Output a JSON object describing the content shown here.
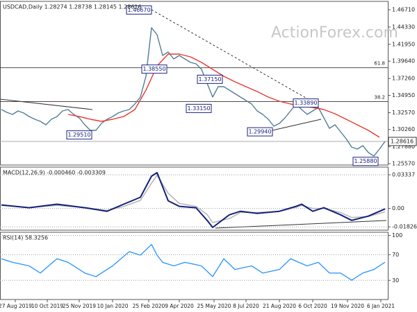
{
  "chart_data": [
    {
      "type": "line",
      "title": "USDCAD,Daily  1.28274 1.28738 1.28145 1.28616",
      "watermark": "ActionForex.com",
      "xlim": [
        -0.25,
        69.25
      ],
      "ylim": [
        1.2538,
        1.4785
      ],
      "yticks": [
        {
          "value": 1.4671,
          "label": "1.46710"
        },
        {
          "value": 1.4433,
          "label": "1.44330"
        },
        {
          "value": 1.4195,
          "label": "1.41950"
        },
        {
          "value": 1.3964,
          "label": "1.39640"
        },
        {
          "value": 1.3726,
          "label": "1.37260"
        },
        {
          "value": 1.3495,
          "label": "1.34950"
        },
        {
          "value": 1.3257,
          "label": "1.32570"
        },
        {
          "value": 1.3026,
          "label": "1.30260"
        },
        {
          "value": 1.2788,
          "label": "1.27880"
        },
        {
          "value": 1.2557,
          "label": "1.25570"
        }
      ],
      "x": [
        0,
        1,
        2,
        3,
        4,
        5,
        6,
        7,
        8,
        9,
        10,
        11,
        12,
        13,
        14,
        15,
        16,
        17,
        18,
        19,
        20,
        21,
        22,
        23,
        24,
        25,
        26,
        27,
        28,
        29,
        30,
        31,
        32,
        33,
        34,
        35,
        36,
        37,
        38,
        39,
        40,
        41,
        42,
        43,
        44,
        45,
        46,
        47,
        48,
        49,
        50,
        51,
        52,
        53,
        54,
        55,
        56,
        57,
        58,
        59,
        60,
        61,
        62,
        63,
        64,
        65,
        66,
        67,
        68,
        69
      ],
      "series": [
        {
          "color": "#4f7d95",
          "values": [
            1.33,
            1.3261,
            1.3233,
            1.3281,
            1.3252,
            1.3204,
            1.3166,
            1.3138,
            1.309,
            1.3166,
            1.3204,
            1.3281,
            1.33,
            1.3233,
            1.3185,
            1.309,
            1.3014,
            1.3014,
            1.3109,
            1.3166,
            1.3204,
            1.3252,
            1.3281,
            1.33,
            1.3376,
            1.3471,
            1.3757,
            1.4423,
            1.4328,
            1.4042,
            1.409,
            1.3995,
            1.4042,
            1.3995,
            1.3947,
            1.3928,
            1.3852,
            1.3661,
            1.3471,
            1.3614,
            1.3614,
            1.3566,
            1.3519,
            1.3471,
            1.3423,
            1.3376,
            1.3281,
            1.3233,
            1.3166,
            1.3071,
            1.3109,
            1.3185,
            1.3281,
            1.3376,
            1.33,
            1.3233,
            1.3281,
            1.3328,
            1.3185,
            1.3042,
            1.309,
            1.2995,
            1.29,
            1.2785,
            1.2757,
            1.2804,
            1.2709,
            1.2661,
            1.2757,
            1.28616
          ]
        },
        {
          "color": "#e8382e",
          "x": [
            12,
            14,
            16,
            18,
            20,
            22,
            24,
            26,
            28,
            30,
            32,
            34,
            36,
            38,
            40,
            42,
            44,
            46,
            48,
            50,
            52,
            54,
            56,
            58,
            60,
            62,
            64,
            66,
            68
          ],
          "values": [
            1.3233,
            1.3204,
            1.3166,
            1.3138,
            1.3166,
            1.3204,
            1.33,
            1.3566,
            1.39,
            1.4061,
            1.4061,
            1.4023,
            1.3947,
            1.3852,
            1.3757,
            1.3681,
            1.3614,
            1.3547,
            1.3471,
            1.3414,
            1.3376,
            1.3347,
            1.3328,
            1.33,
            1.3242,
            1.3166,
            1.309,
            1.3014,
            1.2919
          ]
        }
      ],
      "hlines": [
        {
          "value": 1.3874,
          "label": "61.8"
        },
        {
          "value": 1.341,
          "label": "38.2"
        }
      ],
      "last_value": 1.28616,
      "annotations": [
        {
          "x": 24.75,
          "value": 1.4667,
          "label": "1.46670"
        },
        {
          "x": 27.5,
          "value": 1.3855,
          "label": "1.38550"
        },
        {
          "x": 37.5,
          "value": 1.3715,
          "label": "1.37150"
        },
        {
          "x": 35.5,
          "value": 1.3315,
          "label": "1.33150"
        },
        {
          "x": 14,
          "value": 1.2951,
          "label": "1.29510"
        },
        {
          "x": 46.5,
          "value": 1.2994,
          "label": "1.29940"
        },
        {
          "x": 54.75,
          "value": 1.3389,
          "label": "1.33890"
        },
        {
          "x": 65.5,
          "value": 1.2588,
          "label": "1.25880"
        }
      ]
    },
    {
      "type": "line",
      "title": "MACD(12,26,9) -0.000460 -0.003309",
      "grid": true,
      "xlim": [
        -0.25,
        69.25
      ],
      "ylim": [
        -0.02156,
        0.04102
      ],
      "yticks": [
        0.03337,
        {
          "value": 0,
          "label": "0.00"
        },
        -0.018262
      ],
      "x": [
        0,
        5,
        10,
        15,
        19,
        22,
        25,
        27,
        28,
        30,
        32,
        35,
        37,
        38,
        41,
        43,
        46,
        50,
        53,
        54,
        56,
        58,
        61,
        63,
        66,
        69
      ],
      "series": [
        {
          "color": "#b4b4b4",
          "values": [
            0.003,
            0.001,
            0.003,
            0.001,
            -0.002,
            0.002,
            0.008,
            0.025,
            0.033,
            0.015,
            0.005,
            0.002,
            -0.006,
            -0.014,
            -0.01,
            -0.004,
            -0.004,
            -0.003,
            0.001,
            0.003,
            0,
            0,
            -0.004,
            -0.009,
            -0.008,
            -0.003309
          ]
        },
        {
          "color": "#13207a",
          "values": [
            0.0035,
            0.0007,
            0.0042,
            0.0007,
            -0.0028,
            0.0042,
            0.0111,
            0.032,
            0.0355,
            0.0076,
            0.0021,
            0.0007,
            -0.0118,
            -0.0188,
            -0.0063,
            -0.0028,
            -0.0049,
            -0.0028,
            0.0021,
            0.0042,
            -0.0028,
            0.0007,
            -0.0063,
            -0.0118,
            -0.0076,
            -0.00046
          ]
        }
      ]
    },
    {
      "type": "line",
      "title": "RSI(14) 58.3256",
      "grid": true,
      "xlim": [
        -0.25,
        69.25
      ],
      "ylim": [
        0,
        105
      ],
      "yticks": [
        100,
        70,
        30
      ],
      "x": [
        0,
        2,
        5,
        7,
        10,
        12,
        15,
        17,
        20,
        23,
        25,
        27,
        28,
        29,
        31,
        33,
        36,
        38,
        40,
        42,
        45,
        47,
        50,
        52,
        55,
        57,
        59,
        61,
        63,
        65,
        67,
        69
      ],
      "series": [
        {
          "color": "#3399ff",
          "values": [
            63.7,
            58.1,
            52.5,
            41.3,
            63.7,
            58.1,
            41.3,
            35.7,
            52.5,
            74.8,
            69.3,
            86,
            69.3,
            58.1,
            52.5,
            58.1,
            52.5,
            35.7,
            63.7,
            46.9,
            52.5,
            41.3,
            46.9,
            63.7,
            52.5,
            58.1,
            41.3,
            41.3,
            30.2,
            41.3,
            46.9,
            58.3256
          ]
        }
      ],
      "xticks": [
        {
          "value": 2.5,
          "label": "27 Aug 2019"
        },
        {
          "value": 8.25,
          "label": "10 Oct 2019"
        },
        {
          "value": 14,
          "label": "25 Nov 2019"
        },
        {
          "value": 20,
          "label": "10 Jan 2020"
        },
        {
          "value": 26.5,
          "label": "25 Feb 2020"
        },
        {
          "value": 32,
          "label": "9 Apr 2020"
        },
        {
          "value": 38.25,
          "label": "25 May 2020"
        },
        {
          "value": 44,
          "label": "8 Jul 2020"
        },
        {
          "value": 50,
          "label": "21 Aug 2020"
        },
        {
          "value": 56,
          "label": "6 Oct 2020"
        },
        {
          "value": 62.25,
          "label": "19 Nov 2020"
        },
        {
          "value": 68.25,
          "label": "6 Jan 2021"
        }
      ]
    }
  ]
}
